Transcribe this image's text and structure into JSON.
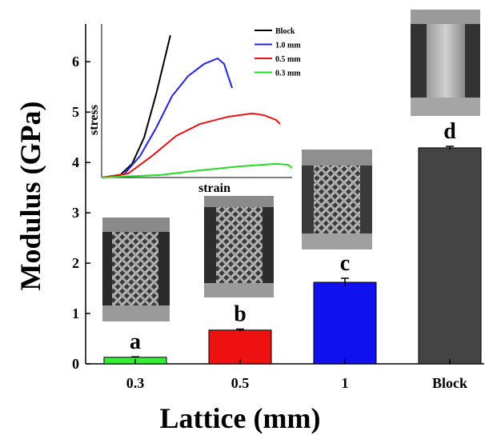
{
  "chart_data": [
    {
      "type": "bar",
      "x_label": "Lattice (mm)",
      "y_label": "Modulus (GPa)",
      "categories": [
        "0.3",
        "0.5",
        "1",
        "Block"
      ],
      "values": [
        0.13,
        0.67,
        1.62,
        4.29
      ],
      "errors": [
        0.01,
        0.02,
        0.08,
        0.03
      ],
      "colors": [
        "#33ee33",
        "#ee1111",
        "#1111ee",
        "#444444"
      ],
      "annotations": [
        "a",
        "b",
        "c",
        "d"
      ],
      "ylim": [
        0,
        6.75
      ],
      "yticks": [
        0,
        1,
        2,
        3,
        4,
        5,
        6
      ]
    },
    {
      "type": "line",
      "x_label": "strain",
      "y_label": "stress",
      "xlim": [
        0,
        100
      ],
      "ylim": [
        0,
        100
      ],
      "series": [
        {
          "name": "Block",
          "color": "#000000",
          "x": [
            0,
            9.7,
            16,
            22.3,
            28.6,
            36.1
          ],
          "values": [
            0,
            1.6,
            8.9,
            26,
            54.2,
            92.7
          ]
        },
        {
          "name": "1.0 mm",
          "color": "#2222ee",
          "x": [
            0,
            11.8,
            20.2,
            28.6,
            37,
            45.4,
            53.8,
            60.9,
            64.3,
            68.5
          ],
          "values": [
            0,
            2.1,
            14.1,
            32.3,
            53.1,
            66.1,
            74,
            77.6,
            74,
            58.3
          ]
        },
        {
          "name": "0.5 mm",
          "color": "#ee1111",
          "x": [
            0,
            13.9,
            26.5,
            39.1,
            51.7,
            66.4,
            79,
            85.3,
            91.6,
            93.7
          ],
          "values": [
            0,
            2.6,
            14.1,
            27.1,
            34.9,
            39.6,
            41.7,
            40.6,
            37.5,
            34.9
          ]
        },
        {
          "name": "0.3 mm",
          "color": "#22dd22",
          "x": [
            0,
            30.7,
            51.7,
            72.7,
            91.6,
            97.9,
            100
          ],
          "values": [
            0,
            1.6,
            4.7,
            7.3,
            8.9,
            8.3,
            6.3
          ]
        }
      ]
    }
  ]
}
